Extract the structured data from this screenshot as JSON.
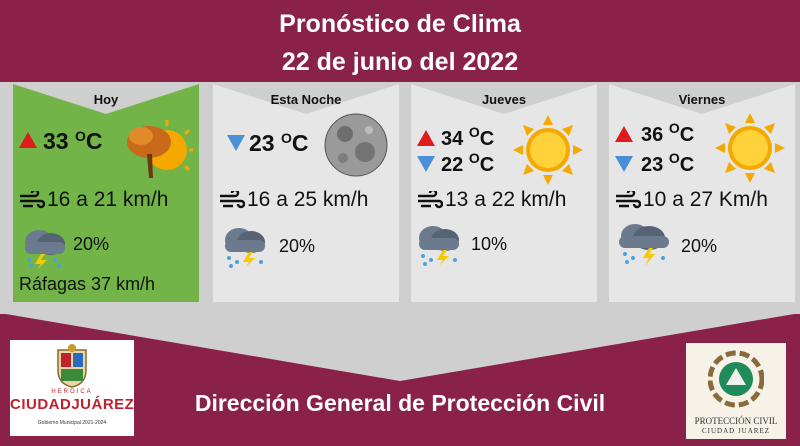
{
  "header": {
    "title": "Pronóstico de Clima",
    "date": "22 de junio del 2022"
  },
  "days": [
    {
      "name": "Hoy",
      "temp_high": "33",
      "temp_low": "",
      "unit": "C",
      "deg": "O",
      "wind": "16 a 21 km/h",
      "rain_chance": "20%",
      "gusts": "Ráfagas 37  km/h",
      "weather_icon": "hot-sun-tree-icon",
      "background": "#72b447"
    },
    {
      "name": "Esta Noche",
      "temp_low": "23",
      "unit": "C",
      "deg": "O",
      "wind": "16 a 25 km/h",
      "rain_chance": "20%",
      "weather_icon": "moon-icon"
    },
    {
      "name": "Jueves",
      "temp_high": "34",
      "temp_low": "22",
      "unit": "C",
      "deg": "O",
      "wind": "13 a 22 km/h",
      "rain_chance": "10%",
      "weather_icon": "sun-icon"
    },
    {
      "name": "Viernes",
      "temp_high": "36",
      "temp_low": "23",
      "unit": "C",
      "deg": "O",
      "wind": "10 a 27 Km/h",
      "rain_chance": "20%",
      "weather_icon": "sun-icon"
    }
  ],
  "footer": {
    "text": "Dirección General de Protección Civil"
  },
  "logos": {
    "left_heroica": "HEROICA",
    "left_brand": "CIUDADJUÁREZ",
    "left_sub": "Gobierno Municipal 2021-2024",
    "right_line1": "PROTECCIÓN CIVIL",
    "right_line2": "CIUDAD JUAREZ"
  },
  "colors": {
    "background": "#8a2148",
    "band": "#cfcfcf",
    "card": "#e6e6e6",
    "hot_card": "#72b447",
    "high_arrow": "#e01b1b",
    "low_arrow": "#4a90d9",
    "sun": "#f5a800"
  }
}
